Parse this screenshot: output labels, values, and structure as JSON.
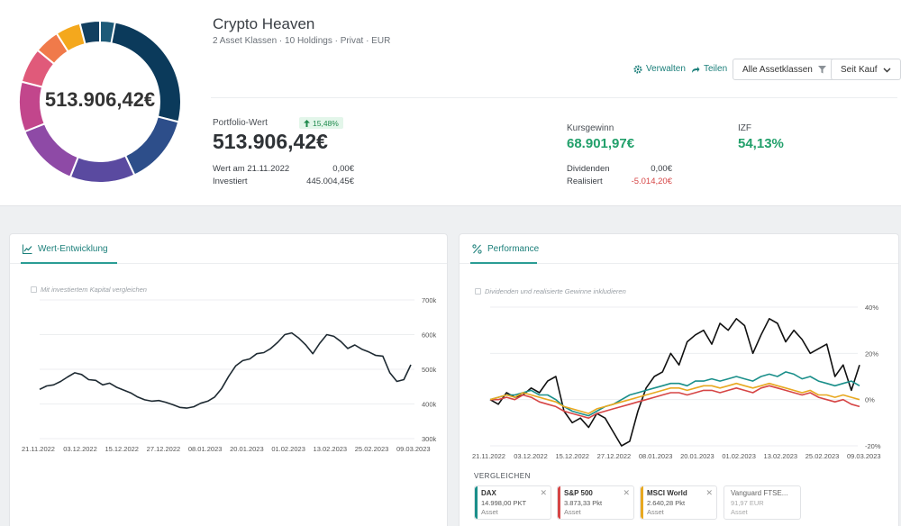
{
  "colors": {
    "accent": "#1b7f7a",
    "positive": "#22a06b",
    "negative": "#d64545",
    "donut": [
      "#0b3a5b",
      "#2d4e8a",
      "#5a4aa0",
      "#8e4aa6",
      "#c2468c",
      "#e05a7a",
      "#f07a4a",
      "#f4a81d",
      "#123f60",
      "#1d5a78"
    ]
  },
  "portfolio": {
    "title": "Crypto Heaven",
    "subtitle": "2 Asset Klassen · 10 Holdings · Privat · EUR",
    "donut_total": "513.906,42€",
    "donut_shares": [
      0.29,
      0.14,
      0.13,
      0.13,
      0.1,
      0.07,
      0.05,
      0.05,
      0.04,
      0.03
    ]
  },
  "actions": {
    "manage_label": "Verwalten",
    "manage_icon": "gear-icon",
    "share_label": "Teilen",
    "share_icon": "share-arrow-icon",
    "asset_filter_label": "Alle Assetklassen",
    "asset_filter_icon": "filter-icon",
    "period_label": "Seit Kauf",
    "period_icon": "chevron-down-icon"
  },
  "stats": {
    "value_label": "Portfolio-Wert",
    "value_change": "15,48%",
    "value": "513.906,42€",
    "start_label": "Wert am 21.11.2022",
    "start_value": "0,00€",
    "invested_label": "Investiert",
    "invested_value": "445.004,45€",
    "gain_label": "Kursgewinn",
    "gain_value": "68.901,97€",
    "izf_label": "IZF",
    "izf_value": "54,13%",
    "dividends_label": "Dividenden",
    "dividends_value": "0,00€",
    "realized_label": "Realisiert",
    "realized_value": "-5.014,20€"
  },
  "value_panel": {
    "tab_label": "Wert-Entwicklung",
    "tab_icon": "line-chart-icon",
    "checkbox_label": "Mit investiertem Kapital vergleichen"
  },
  "performance_panel": {
    "tab_label": "Performance",
    "tab_icon": "percent-icon",
    "checkbox_label": "Dividenden und realisierte Gewinne inkludieren",
    "compare_title": "VERGLEICHEN",
    "compare": [
      {
        "name": "DAX",
        "value": "14.998,00 PKT",
        "type": "Asset",
        "color": "#1a8f8a"
      },
      {
        "name": "S&P 500",
        "value": "3.873,33 Pkt",
        "type": "Asset",
        "color": "#d64545"
      },
      {
        "name": "MSCI World",
        "value": "2.640,28 Pkt",
        "type": "Asset",
        "color": "#e8a820"
      },
      {
        "name": "Vanguard FTSE...",
        "value": "91,97 EUR",
        "type": "Asset",
        "color": ""
      }
    ]
  },
  "chart_data": [
    {
      "type": "line",
      "title": "Wert-Entwicklung",
      "x_ticks": [
        "21.11.2022",
        "03.12.2022",
        "15.12.2022",
        "27.12.2022",
        "08.01.2023",
        "20.01.2023",
        "01.02.2023",
        "13.02.2023",
        "25.02.2023",
        "09.03.2023"
      ],
      "y_ticks": [
        "700k",
        "600k",
        "500k",
        "400k",
        "300k"
      ],
      "ylim": [
        300000,
        700000
      ],
      "grid": true,
      "series": [
        {
          "color": "#1e2a32",
          "values": [
            442000,
            452000,
            455000,
            465000,
            478000,
            490000,
            485000,
            470000,
            468000,
            455000,
            460000,
            448000,
            440000,
            432000,
            420000,
            412000,
            408000,
            410000,
            405000,
            398000,
            390000,
            388000,
            392000,
            402000,
            408000,
            420000,
            445000,
            480000,
            510000,
            525000,
            530000,
            545000,
            548000,
            560000,
            578000,
            600000,
            605000,
            590000,
            570000,
            545000,
            575000,
            600000,
            595000,
            580000,
            560000,
            570000,
            558000,
            550000,
            540000,
            538000,
            490000,
            465000,
            470000,
            513000
          ]
        }
      ]
    },
    {
      "type": "line",
      "title": "Performance",
      "x_ticks": [
        "21.11.2022",
        "03.12.2022",
        "15.12.2022",
        "27.12.2022",
        "08.01.2023",
        "20.01.2023",
        "01.02.2023",
        "13.02.2023",
        "25.02.2023",
        "09.03.2023"
      ],
      "y_ticks": [
        "40%",
        "20%",
        "0%",
        "-20%"
      ],
      "ylim": [
        -20,
        40
      ],
      "grid": true,
      "series": [
        {
          "color": "#111111",
          "values": [
            0,
            -2,
            3,
            1,
            2,
            5,
            3,
            8,
            10,
            -5,
            -10,
            -8,
            -12,
            -6,
            -8,
            -14,
            -20,
            -18,
            -5,
            5,
            10,
            12,
            20,
            15,
            25,
            28,
            30,
            24,
            33,
            30,
            35,
            32,
            20,
            28,
            35,
            33,
            25,
            30,
            26,
            20,
            22,
            24,
            10,
            15,
            4,
            15
          ]
        },
        {
          "color": "#1a8f8a",
          "values": [
            0,
            1,
            2,
            2,
            3,
            4,
            2,
            2,
            0,
            -3,
            -5,
            -6,
            -7,
            -5,
            -3,
            -2,
            0,
            2,
            3,
            4,
            5,
            6,
            7,
            7,
            6,
            8,
            8,
            9,
            8,
            9,
            10,
            9,
            8,
            10,
            11,
            10,
            12,
            11,
            9,
            10,
            8,
            7,
            6,
            7,
            8,
            6
          ]
        },
        {
          "color": "#d64545",
          "values": [
            0,
            0,
            1,
            0,
            2,
            1,
            -1,
            -2,
            -3,
            -5,
            -6,
            -7,
            -8,
            -6,
            -5,
            -4,
            -3,
            -2,
            -1,
            0,
            1,
            2,
            3,
            3,
            2,
            3,
            4,
            4,
            3,
            4,
            5,
            4,
            3,
            5,
            6,
            5,
            4,
            3,
            2,
            3,
            1,
            0,
            -1,
            0,
            -2,
            -3
          ]
        },
        {
          "color": "#e8a820",
          "values": [
            0,
            1,
            2,
            1,
            3,
            2,
            1,
            0,
            -1,
            -3,
            -4,
            -5,
            -6,
            -4,
            -3,
            -2,
            -1,
            0,
            1,
            2,
            3,
            4,
            5,
            5,
            4,
            5,
            6,
            6,
            5,
            6,
            7,
            6,
            5,
            6,
            7,
            6,
            5,
            4,
            3,
            4,
            2,
            2,
            1,
            2,
            1,
            0
          ]
        }
      ]
    }
  ]
}
